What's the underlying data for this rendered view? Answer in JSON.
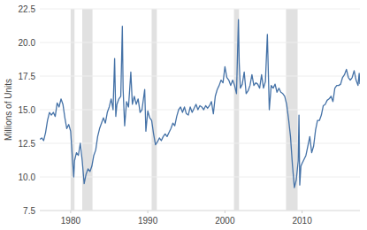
{
  "chart_data": {
    "type": "line",
    "y_label": "Millions of Units",
    "color": "#4572a7",
    "grid": true,
    "xlim": [
      1976.0,
      2017.5
    ],
    "xticks": [
      1980,
      1990,
      2000,
      2010
    ],
    "ylim": [
      7.5,
      22.5
    ],
    "yticks": [
      7.5,
      {
        "value": 10,
        "label": "10.0"
      },
      12.5,
      {
        "value": 15,
        "label": "15.0"
      },
      17.5,
      {
        "value": 20,
        "label": "20.0"
      },
      22.5
    ],
    "recessions": [
      [
        1980.0,
        1980.5
      ],
      [
        1981.5,
        1982.83
      ],
      [
        1990.5,
        1991.17
      ],
      [
        2001.17,
        2001.83
      ],
      [
        2007.92,
        2009.42
      ]
    ],
    "x": [
      1976.0,
      1976.25,
      1976.5,
      1976.75,
      1977.0,
      1977.25,
      1977.5,
      1977.75,
      1978.0,
      1978.25,
      1978.5,
      1978.75,
      1979.0,
      1979.25,
      1979.5,
      1979.75,
      1980.0,
      1980.25,
      1980.4,
      1980.5,
      1980.75,
      1981.0,
      1981.25,
      1981.5,
      1981.75,
      1982.0,
      1982.25,
      1982.5,
      1982.75,
      1983.0,
      1983.25,
      1983.5,
      1983.75,
      1984.0,
      1984.25,
      1984.5,
      1984.75,
      1985.0,
      1985.25,
      1985.5,
      1985.7,
      1985.85,
      1986.0,
      1986.25,
      1986.5,
      1986.7,
      1986.8,
      1987.0,
      1987.25,
      1987.5,
      1987.8,
      1988.0,
      1988.25,
      1988.5,
      1988.75,
      1989.0,
      1989.25,
      1989.6,
      1989.75,
      1990.0,
      1990.25,
      1990.5,
      1990.75,
      1991.0,
      1991.25,
      1991.5,
      1991.75,
      1992.0,
      1992.25,
      1992.5,
      1992.75,
      1993.0,
      1993.25,
      1993.5,
      1993.75,
      1994.0,
      1994.25,
      1994.5,
      1994.75,
      1995.0,
      1995.25,
      1995.5,
      1995.75,
      1996.0,
      1996.25,
      1996.5,
      1996.75,
      1997.0,
      1997.25,
      1997.5,
      1997.75,
      1998.0,
      1998.25,
      1998.5,
      1998.75,
      1999.0,
      1999.25,
      1999.5,
      1999.75,
      2000.0,
      2000.25,
      2000.5,
      2000.75,
      2001.0,
      2001.25,
      2001.5,
      2001.75,
      2001.85,
      2002.0,
      2002.25,
      2002.5,
      2002.75,
      2003.0,
      2003.25,
      2003.5,
      2003.75,
      2004.0,
      2004.25,
      2004.5,
      2004.75,
      2005.0,
      2005.25,
      2005.5,
      2005.75,
      2006.0,
      2006.25,
      2006.5,
      2006.75,
      2007.0,
      2007.25,
      2007.5,
      2007.75,
      2008.0,
      2008.25,
      2008.5,
      2008.75,
      2009.0,
      2009.25,
      2009.5,
      2009.6,
      2009.7,
      2009.85,
      2010.0,
      2010.25,
      2010.5,
      2010.75,
      2011.0,
      2011.25,
      2011.5,
      2011.75,
      2012.0,
      2012.25,
      2012.5,
      2012.75,
      2013.0,
      2013.25,
      2013.5,
      2013.75,
      2014.0,
      2014.25,
      2014.5,
      2014.75,
      2015.0,
      2015.25,
      2015.5,
      2015.75,
      2016.0,
      2016.25,
      2016.5,
      2016.75,
      2017.0,
      2017.25,
      2017.4,
      2017.5
    ],
    "values": [
      12.8,
      12.9,
      12.7,
      13.3,
      14.2,
      14.8,
      14.6,
      14.8,
      14.5,
      15.5,
      15.2,
      15.8,
      15.4,
      14.4,
      13.6,
      13.9,
      13.4,
      11.2,
      10.0,
      11.2,
      11.8,
      11.6,
      12.5,
      11.2,
      9.5,
      10.2,
      10.6,
      10.4,
      10.8,
      11.6,
      12.0,
      13.0,
      13.6,
      14.0,
      14.4,
      14.0,
      14.8,
      15.2,
      15.8,
      15.0,
      18.8,
      14.5,
      15.4,
      15.8,
      16.0,
      21.2,
      16.5,
      13.8,
      15.6,
      15.2,
      17.8,
      15.4,
      16.0,
      15.4,
      15.8,
      14.8,
      15.0,
      16.5,
      13.4,
      14.9,
      14.4,
      14.2,
      13.2,
      12.4,
      12.6,
      12.9,
      12.7,
      13.0,
      13.2,
      13.0,
      13.3,
      13.6,
      14.0,
      13.8,
      14.5,
      15.0,
      15.2,
      14.8,
      15.2,
      14.7,
      14.6,
      15.2,
      14.8,
      15.1,
      15.4,
      15.0,
      15.3,
      15.2,
      15.0,
      15.3,
      15.1,
      15.3,
      15.6,
      14.7,
      16.0,
      16.5,
      16.8,
      17.2,
      17.0,
      18.2,
      17.4,
      17.2,
      16.8,
      17.2,
      16.8,
      16.2,
      21.7,
      18.5,
      16.6,
      16.9,
      17.8,
      16.2,
      16.4,
      16.8,
      17.6,
      16.8,
      17.0,
      16.9,
      16.6,
      17.6,
      16.6,
      17.1,
      20.6,
      15.0,
      16.8,
      16.6,
      16.9,
      16.3,
      16.6,
      16.3,
      16.2,
      16.0,
      15.4,
      14.3,
      13.0,
      10.9,
      9.2,
      9.8,
      11.2,
      14.6,
      9.4,
      10.8,
      11.0,
      11.3,
      11.6,
      12.3,
      13.0,
      11.8,
      12.3,
      13.5,
      14.2,
      14.2,
      14.6,
      15.3,
      15.4,
      15.7,
      15.8,
      16.0,
      15.6,
      16.6,
      16.8,
      16.8,
      16.9,
      17.4,
      17.6,
      18.0,
      17.4,
      17.2,
      17.4,
      17.9,
      17.2,
      16.8,
      17.7,
      16.9
    ]
  }
}
